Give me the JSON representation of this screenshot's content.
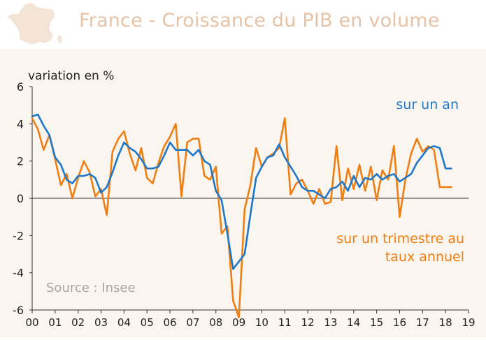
{
  "header": {
    "title": "France - Croissance du PIB en volume",
    "map_icon": "france-map-icon"
  },
  "colors": {
    "annual": "#1f77c8",
    "quarterly": "#f07f13",
    "title": "#e8c2a4",
    "source": "#a6a6a6",
    "panel_bg": "#fbf5ef",
    "map_fill": "#f4e4d6"
  },
  "chart_data": {
    "type": "line",
    "ylabel": "variation en %",
    "ylim": [
      -6,
      6
    ],
    "yticks": [
      "6",
      "4",
      "2",
      "0",
      "-2",
      "-4",
      "-6"
    ],
    "xlim": [
      2000,
      2019
    ],
    "xticks": [
      "00",
      "01",
      "02",
      "03",
      "04",
      "05",
      "06",
      "07",
      "08",
      "09",
      "10",
      "11",
      "12",
      "13",
      "14",
      "15",
      "16",
      "17",
      "18",
      "19"
    ],
    "source": "Source : Insee",
    "series": [
      {
        "name": "sur un an",
        "label_lines": [
          "sur un an"
        ],
        "x": [
          2000.0,
          2000.25,
          2000.5,
          2000.75,
          2001.0,
          2001.25,
          2001.5,
          2001.75,
          2002.0,
          2002.25,
          2002.5,
          2002.75,
          2003.0,
          2003.25,
          2003.5,
          2003.75,
          2004.0,
          2004.25,
          2004.5,
          2004.75,
          2005.0,
          2005.25,
          2005.5,
          2005.75,
          2006.0,
          2006.25,
          2006.5,
          2006.75,
          2007.0,
          2007.25,
          2007.5,
          2007.75,
          2008.0,
          2008.25,
          2008.5,
          2008.75,
          2009.0,
          2009.25,
          2009.5,
          2009.75,
          2010.0,
          2010.25,
          2010.5,
          2010.75,
          2011.0,
          2011.25,
          2011.5,
          2011.75,
          2012.0,
          2012.25,
          2012.5,
          2012.75,
          2013.0,
          2013.25,
          2013.5,
          2013.75,
          2014.0,
          2014.25,
          2014.5,
          2014.75,
          2015.0,
          2015.25,
          2015.5,
          2015.75,
          2016.0,
          2016.25,
          2016.5,
          2016.75,
          2017.0,
          2017.25,
          2017.5,
          2017.75,
          2018.0,
          2018.25
        ],
        "values": [
          4.4,
          4.5,
          3.9,
          3.4,
          2.2,
          1.8,
          1.0,
          0.8,
          1.2,
          1.2,
          1.3,
          1.1,
          0.3,
          0.6,
          1.4,
          2.3,
          3.0,
          2.7,
          2.5,
          2.1,
          1.6,
          1.6,
          1.7,
          2.3,
          3.0,
          2.6,
          2.6,
          2.6,
          2.3,
          2.6,
          2.0,
          1.8,
          0.4,
          -0.1,
          -1.9,
          -3.8,
          -3.4,
          -3.0,
          -0.9,
          1.1,
          1.7,
          2.2,
          2.3,
          2.9,
          2.2,
          1.7,
          1.2,
          0.6,
          0.4,
          0.4,
          0.2,
          0.0,
          0.5,
          0.6,
          0.9,
          0.4,
          1.2,
          0.6,
          1.1,
          1.0,
          1.3,
          1.0,
          1.2,
          1.3,
          0.9,
          1.1,
          1.3,
          1.9,
          2.3,
          2.7,
          2.8,
          2.7,
          1.6,
          1.6
        ],
        "color_key": "annual"
      },
      {
        "name": "sur un trimestre au taux annuel",
        "label_lines": [
          "sur un trimestre au",
          "taux annuel"
        ],
        "x": [
          2000.0,
          2000.25,
          2000.5,
          2000.75,
          2001.0,
          2001.25,
          2001.5,
          2001.75,
          2002.0,
          2002.25,
          2002.5,
          2002.75,
          2003.0,
          2003.25,
          2003.5,
          2003.75,
          2004.0,
          2004.25,
          2004.5,
          2004.75,
          2005.0,
          2005.25,
          2005.5,
          2005.75,
          2006.0,
          2006.25,
          2006.5,
          2006.75,
          2007.0,
          2007.25,
          2007.5,
          2007.75,
          2008.0,
          2008.25,
          2008.5,
          2008.75,
          2009.0,
          2009.25,
          2009.5,
          2009.75,
          2010.0,
          2010.25,
          2010.5,
          2010.75,
          2011.0,
          2011.25,
          2011.5,
          2011.75,
          2012.0,
          2012.25,
          2012.5,
          2012.75,
          2013.0,
          2013.25,
          2013.5,
          2013.75,
          2014.0,
          2014.25,
          2014.5,
          2014.75,
          2015.0,
          2015.25,
          2015.5,
          2015.75,
          2016.0,
          2016.25,
          2016.5,
          2016.75,
          2017.0,
          2017.25,
          2017.5,
          2017.75,
          2018.0,
          2018.25
        ],
        "values": [
          4.3,
          3.7,
          2.6,
          3.4,
          2.1,
          0.7,
          1.3,
          0.0,
          1.1,
          2.0,
          1.4,
          0.1,
          0.5,
          -0.9,
          2.5,
          3.2,
          3.6,
          2.4,
          1.5,
          2.7,
          1.1,
          0.8,
          1.9,
          2.8,
          3.3,
          4.0,
          0.1,
          3.0,
          3.2,
          3.2,
          1.2,
          1.0,
          1.7,
          -1.9,
          -1.5,
          -5.5,
          -6.4,
          -0.6,
          0.7,
          2.7,
          1.7,
          2.2,
          2.4,
          2.7,
          4.3,
          0.2,
          0.8,
          1.0,
          0.4,
          -0.3,
          0.5,
          -0.3,
          -0.2,
          2.8,
          -0.1,
          1.6,
          0.5,
          1.8,
          0.4,
          1.7,
          -0.1,
          1.5,
          1.0,
          2.8,
          -1.0,
          1.0,
          2.4,
          3.2,
          2.5,
          2.8,
          2.6,
          0.6,
          0.6,
          0.6
        ],
        "color_key": "quarterly"
      }
    ]
  }
}
